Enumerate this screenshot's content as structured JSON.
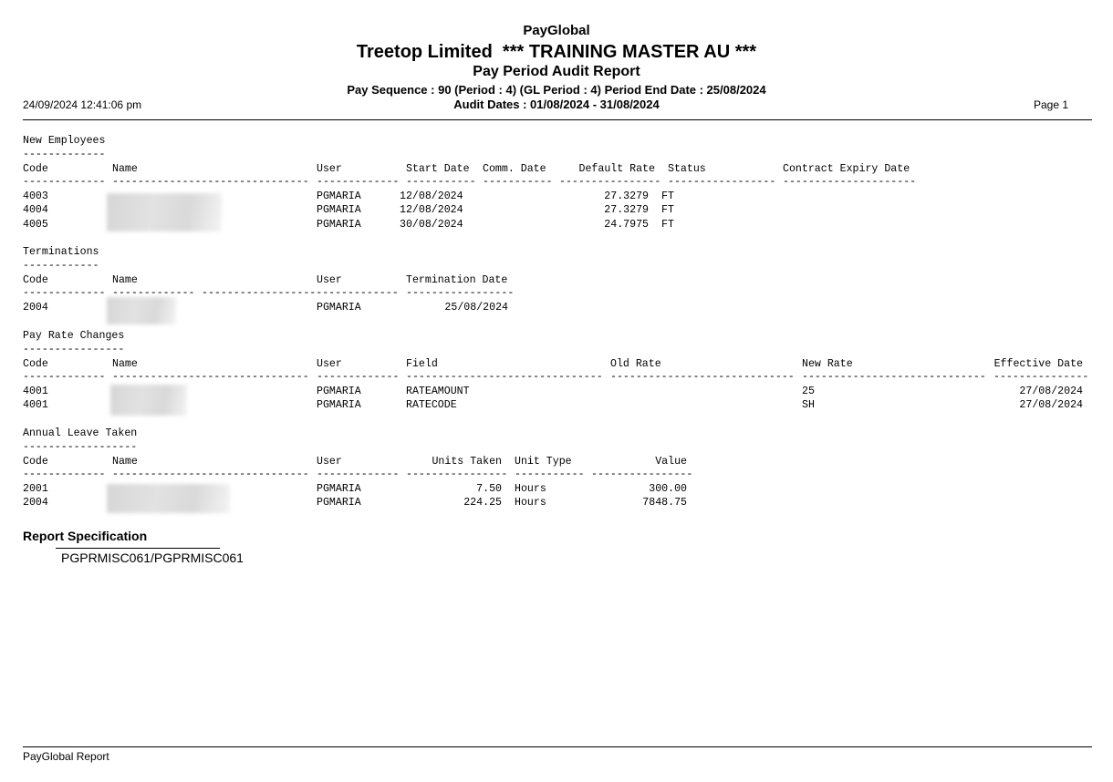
{
  "header": {
    "app_name": "PayGlobal",
    "company": "Treetop Limited  *** TRAINING MASTER AU ***",
    "report_title": "Pay Period Audit Report",
    "pay_sequence": "Pay Sequence : 90 (Period : 4) (GL Period : 4) Period End Date : 25/08/2024",
    "audit_dates": "Audit Dates : 01/08/2024 - 31/08/2024",
    "timestamp": "24/09/2024 12:41:06 pm",
    "page": "Page 1"
  },
  "sections": [
    {
      "title": "New Employees",
      "headers": [
        "Code",
        "Name",
        "User",
        "Start Date",
        "Comm. Date",
        "Default Rate",
        "Status",
        "Contract Expiry Date"
      ],
      "rows": [
        [
          "4003",
          "",
          "PGMARIA",
          "12/08/2024",
          "",
          "27.3279",
          "FT",
          ""
        ],
        [
          "4004",
          "",
          "PGMARIA",
          "12/08/2024",
          "",
          "27.3279",
          "FT",
          ""
        ],
        [
          "4005",
          "",
          "PGMARIA",
          "30/08/2024",
          "",
          "24.7975",
          "FT",
          ""
        ]
      ]
    },
    {
      "title": "Terminations",
      "headers": [
        "Code",
        "Name",
        "User",
        "Termination Date"
      ],
      "rows": [
        [
          "2004",
          "",
          "PGMARIA",
          "25/08/2024"
        ]
      ]
    },
    {
      "title": "Pay Rate Changes",
      "headers": [
        "Code",
        "Name",
        "User",
        "Field",
        "Old Rate",
        "New Rate",
        "Effective Date"
      ],
      "rows": [
        [
          "4001",
          "",
          "PGMARIA",
          "RATEAMOUNT",
          "",
          "25",
          "27/08/2024"
        ],
        [
          "4001",
          "",
          "PGMARIA",
          "RATECODE",
          "",
          "SH",
          "27/08/2024"
        ]
      ]
    },
    {
      "title": "Annual Leave Taken",
      "headers": [
        "Code",
        "Name",
        "User",
        "Units Taken",
        "Unit Type",
        "Value"
      ],
      "rows": [
        [
          "2001",
          "",
          "PGMARIA",
          "7.50",
          "Hours",
          "300.00"
        ],
        [
          "2004",
          "",
          "PGMARIA",
          "224.25",
          "Hours",
          "7848.75"
        ]
      ]
    }
  ],
  "report_spec": {
    "title": "Report Specification",
    "value": "PGPRMISC061/PGPRMISC061"
  },
  "footer": {
    "label": "PayGlobal Report"
  }
}
